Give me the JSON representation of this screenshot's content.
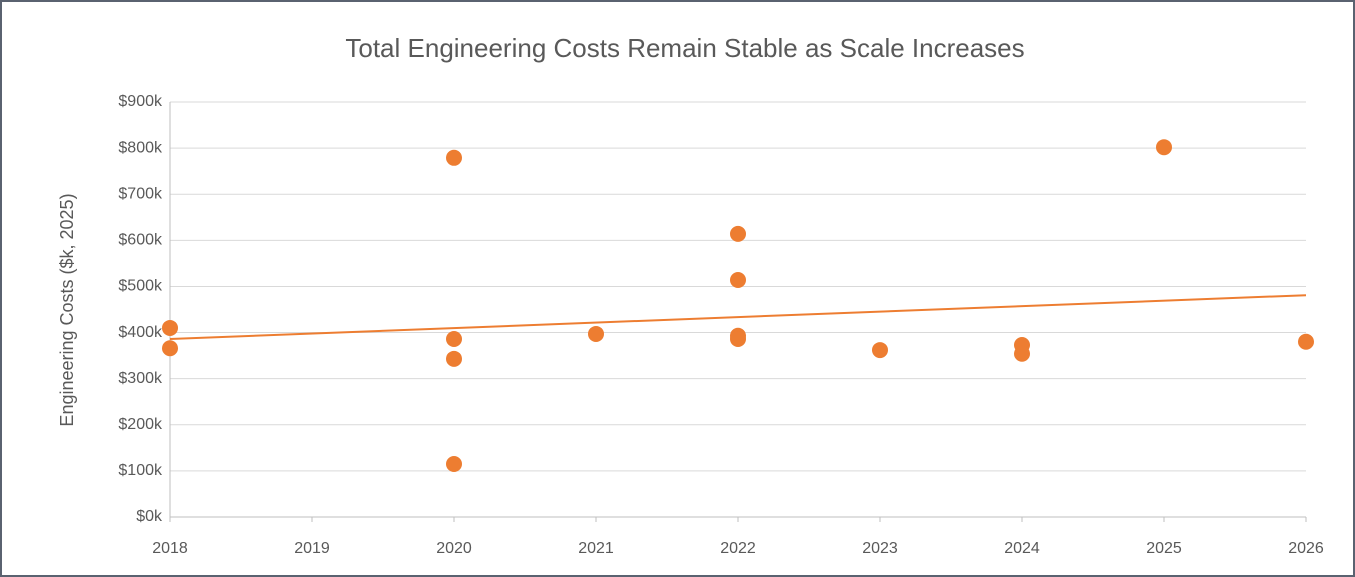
{
  "chart_data": {
    "type": "scatter",
    "title": "Total Engineering Costs Remain Stable as Scale Increases",
    "y_label": "Engineering Costs ($k, 2025)",
    "series": [
      {
        "color": "#ed7d31",
        "x": [
          2018,
          2018,
          2020,
          2020,
          2020,
          2020,
          2021,
          2022,
          2022,
          2022,
          2022,
          2023,
          2024,
          2024,
          2025,
          2026
        ],
        "values": [
          410,
          366,
          779,
          386,
          343,
          115,
          397,
          614,
          514,
          393,
          386,
          362,
          373,
          354,
          802,
          380
        ]
      }
    ],
    "trendline": {
      "color": "#ed7d31",
      "x": [
        2018,
        2026
      ],
      "values": [
        386,
        481
      ]
    },
    "xlim": [
      2018,
      2026
    ],
    "xticks": [
      2018,
      2019,
      2020,
      2021,
      2022,
      2023,
      2024,
      2025,
      2026
    ],
    "ylim": [
      0,
      900
    ],
    "yticks": [
      {
        "value": 0,
        "label": "$0k"
      },
      {
        "value": 100,
        "label": "$100k"
      },
      {
        "value": 200,
        "label": "$200k"
      },
      {
        "value": 300,
        "label": "$300k"
      },
      {
        "value": 400,
        "label": "$400k"
      },
      {
        "value": 500,
        "label": "$500k"
      },
      {
        "value": 600,
        "label": "$600k"
      },
      {
        "value": 700,
        "label": "$700k"
      },
      {
        "value": 800,
        "label": "$800k"
      },
      {
        "value": 900,
        "label": "$900k"
      }
    ],
    "grid": true
  }
}
